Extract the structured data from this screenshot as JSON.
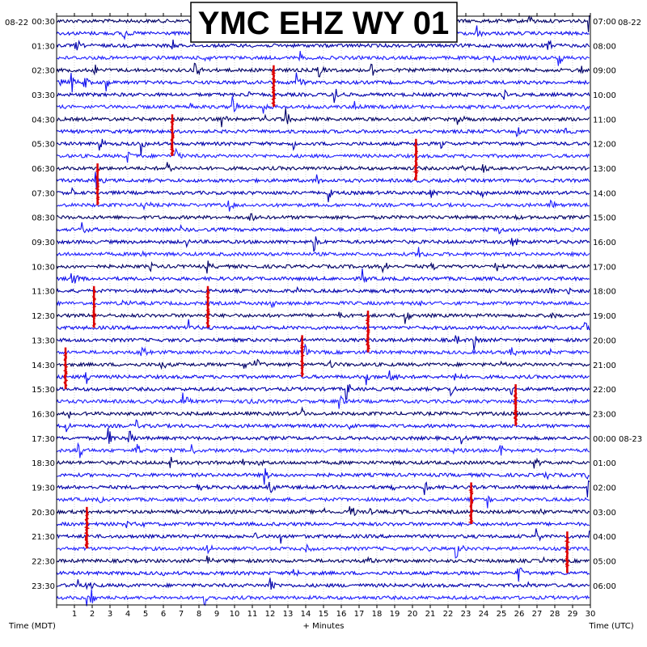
{
  "chart_data": {
    "type": "line",
    "title": "YMC EHZ WY 01",
    "xlabel": "+ Minutes",
    "left_axis_title": "Time (MDT)",
    "right_axis_title": "Time (UTC)",
    "left_date": "08-22",
    "right_date": "08-22",
    "x_ticks": [
      "1",
      "2",
      "3",
      "4",
      "5",
      "6",
      "7",
      "8",
      "9",
      "10",
      "11",
      "12",
      "13",
      "14",
      "15",
      "16",
      "17",
      "18",
      "19",
      "20",
      "21",
      "22",
      "23",
      "24",
      "25",
      "26",
      "27",
      "28",
      "29",
      "30"
    ],
    "xlim": [
      0,
      30
    ],
    "left_hour_labels": [
      "00:30",
      "01:30",
      "02:30",
      "03:30",
      "04:30",
      "05:30",
      "06:30",
      "07:30",
      "08:30",
      "09:30",
      "10:30",
      "11:30",
      "12:30",
      "13:30",
      "14:30",
      "15:30",
      "16:30",
      "17:30",
      "18:30",
      "19:30",
      "20:30",
      "21:30",
      "22:30",
      "23:30"
    ],
    "right_hour_labels": [
      "07:00",
      "08:00",
      "09:00",
      "10:00",
      "11:00",
      "12:00",
      "13:00",
      "14:00",
      "15:00",
      "16:00",
      "17:00",
      "18:00",
      "19:00",
      "20:00",
      "21:00",
      "22:00",
      "23:00",
      "00:00 08-23",
      "01:00",
      "02:00",
      "03:00",
      "04:00",
      "05:00",
      "06:00"
    ],
    "rows_per_hour": 2,
    "trace_colors": [
      "#000066",
      "#1010ee",
      "#0000aa",
      "#2020ff"
    ],
    "event_color": "#dd0000",
    "events": [
      {
        "row": 4,
        "minute": 12.2
      },
      {
        "row": 8,
        "minute": 6.5
      },
      {
        "row": 10,
        "minute": 20.2
      },
      {
        "row": 12,
        "minute": 2.3
      },
      {
        "row": 22,
        "minute": 8.5
      },
      {
        "row": 22,
        "minute": 2.1
      },
      {
        "row": 24,
        "minute": 17.5
      },
      {
        "row": 26,
        "minute": 13.8
      },
      {
        "row": 27,
        "minute": 0.5
      },
      {
        "row": 30,
        "minute": 25.8
      },
      {
        "row": 38,
        "minute": 23.3
      },
      {
        "row": 40,
        "minute": 1.7
      },
      {
        "row": 42,
        "minute": 28.7
      }
    ]
  }
}
